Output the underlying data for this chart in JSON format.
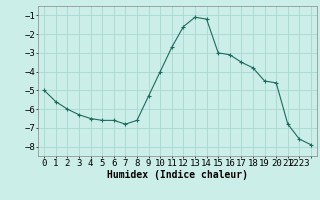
{
  "x": [
    0,
    1,
    2,
    3,
    4,
    5,
    6,
    7,
    8,
    9,
    10,
    11,
    12,
    13,
    14,
    15,
    16,
    17,
    18,
    19,
    20,
    21,
    22,
    23
  ],
  "y": [
    -5.0,
    -5.6,
    -6.0,
    -6.3,
    -6.5,
    -6.6,
    -6.6,
    -6.8,
    -6.6,
    -5.3,
    -4.0,
    -2.7,
    -1.6,
    -1.1,
    -1.2,
    -3.0,
    -3.1,
    -3.5,
    -3.8,
    -4.5,
    -4.6,
    -6.8,
    -7.6,
    -7.9
  ],
  "xlabel": "Humidex (Indice chaleur)",
  "xlim": [
    -0.5,
    23.5
  ],
  "ylim": [
    -8.5,
    -0.5
  ],
  "yticks": [
    -8,
    -7,
    -6,
    -5,
    -4,
    -3,
    -2,
    -1
  ],
  "line_color": "#1c6b5e",
  "marker": "+",
  "bg_color": "#cceee8",
  "grid_color": "#aad8d2",
  "label_fontsize": 7,
  "tick_fontsize": 6.5
}
